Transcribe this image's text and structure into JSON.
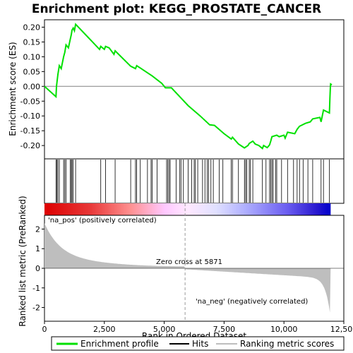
{
  "chart_data": {
    "type": "line",
    "title": "Enrichment plot: KEGG_PROSTATE_CANCER",
    "xlabel": "Rank in Ordered Dataset",
    "ylabel_top": "Enrichment score (ES)",
    "ylabel_bottom": "Ranked list metric (PreRanked)",
    "xlim": [
      0,
      12500
    ],
    "ylim_top": [
      -0.245,
      0.225
    ],
    "ylim_bottom": [
      -2.7,
      2.7
    ],
    "x_ticks": [
      0,
      2500,
      5000,
      7500,
      10000,
      12500
    ],
    "x_tick_labels": [
      "0",
      "2,500",
      "5,000",
      "7,500",
      "10,000",
      "12,500"
    ],
    "y_ticks_top": [
      0.2,
      0.15,
      0.1,
      0.05,
      0.0,
      -0.05,
      -0.1,
      -0.15,
      -0.2
    ],
    "y_tick_labels_top": [
      "0.20",
      "0.15",
      "0.10",
      "0.05",
      "0.00",
      "-0.05",
      "-0.10",
      "-0.15",
      "-0.20"
    ],
    "y_ticks_bottom": [
      2,
      1,
      0,
      -1,
      -2
    ],
    "y_tick_labels_bottom": [
      "2",
      "1",
      "0",
      "-1",
      "-2"
    ],
    "label_pos": "'na_pos' (positively correlated)",
    "label_neg": "'na_neg' (negatively correlated)",
    "zero_cross_label": "Zero cross at 5871",
    "zero_cross": 5871,
    "n_genes": 11950,
    "enrichment_profile": [
      [
        0,
        0.0
      ],
      [
        480,
        -0.035
      ],
      [
        500,
        0.0
      ],
      [
        560,
        0.04
      ],
      [
        620,
        0.07
      ],
      [
        700,
        0.06
      ],
      [
        800,
        0.1
      ],
      [
        850,
        0.115
      ],
      [
        900,
        0.14
      ],
      [
        1000,
        0.13
      ],
      [
        1080,
        0.16
      ],
      [
        1120,
        0.175
      ],
      [
        1150,
        0.19
      ],
      [
        1200,
        0.197
      ],
      [
        1250,
        0.188
      ],
      [
        1300,
        0.21
      ],
      [
        2300,
        0.125
      ],
      [
        2350,
        0.135
      ],
      [
        2500,
        0.125
      ],
      [
        2550,
        0.135
      ],
      [
        2700,
        0.13
      ],
      [
        2900,
        0.108
      ],
      [
        2950,
        0.12
      ],
      [
        3600,
        0.068
      ],
      [
        3800,
        0.06
      ],
      [
        3850,
        0.07
      ],
      [
        4000,
        0.062
      ],
      [
        4500,
        0.035
      ],
      [
        4900,
        0.01
      ],
      [
        5050,
        -0.005
      ],
      [
        5300,
        -0.005
      ],
      [
        6000,
        -0.065
      ],
      [
        6500,
        -0.1
      ],
      [
        6900,
        -0.13
      ],
      [
        7100,
        -0.132
      ],
      [
        7500,
        -0.16
      ],
      [
        7800,
        -0.178
      ],
      [
        7850,
        -0.172
      ],
      [
        8100,
        -0.195
      ],
      [
        8350,
        -0.208
      ],
      [
        8500,
        -0.2
      ],
      [
        8550,
        -0.193
      ],
      [
        8700,
        -0.185
      ],
      [
        8800,
        -0.195
      ],
      [
        8950,
        -0.2
      ],
      [
        9100,
        -0.21
      ],
      [
        9150,
        -0.2
      ],
      [
        9300,
        -0.207
      ],
      [
        9400,
        -0.198
      ],
      [
        9450,
        -0.185
      ],
      [
        9500,
        -0.17
      ],
      [
        9700,
        -0.165
      ],
      [
        9800,
        -0.17
      ],
      [
        10000,
        -0.165
      ],
      [
        10050,
        -0.175
      ],
      [
        10150,
        -0.155
      ],
      [
        10450,
        -0.16
      ],
      [
        10550,
        -0.145
      ],
      [
        10650,
        -0.135
      ],
      [
        10900,
        -0.125
      ],
      [
        11100,
        -0.12
      ],
      [
        11200,
        -0.11
      ],
      [
        11500,
        -0.105
      ],
      [
        11550,
        -0.12
      ],
      [
        11650,
        -0.08
      ],
      [
        11900,
        -0.09
      ],
      [
        11920,
        -0.04
      ],
      [
        11940,
        0.0
      ],
      [
        11950,
        0.008
      ],
      [
        12000,
        0.005
      ]
    ],
    "hits": [
      480,
      520,
      560,
      620,
      800,
      850,
      900,
      1080,
      1120,
      1150,
      1200,
      1300,
      2350,
      2550,
      2950,
      3600,
      3800,
      3850,
      4000,
      4300,
      4450,
      4500,
      4700,
      5100,
      5150,
      5200,
      5250,
      5500,
      5650,
      5700,
      5800,
      6000,
      6150,
      6250,
      6300,
      6400,
      6600,
      6700,
      6800,
      6850,
      6950,
      7050,
      7300,
      7450,
      7800,
      7850,
      8100,
      8350,
      8400,
      8450,
      8550,
      8600,
      8700,
      9100,
      9250,
      9400,
      9450,
      9500,
      9550,
      9650,
      9700,
      9900,
      10150,
      10400,
      10550,
      10650,
      10800,
      11000,
      11200,
      11550,
      11650,
      11900
    ],
    "colors": {
      "profile": "#00e000",
      "hits": "#000000",
      "zero_line": "#808080",
      "metric_fill": "#bebebe",
      "pos_label": "#cc0000",
      "neg_label": "#0000cc",
      "bar_pos": "#dd0000",
      "bar_neg": "#0000cc"
    }
  },
  "legend": {
    "items": [
      {
        "label": "Enrichment profile",
        "symbol": "green-line"
      },
      {
        "label": "Hits",
        "symbol": "black-line"
      },
      {
        "label": "Ranking metric scores",
        "symbol": "gray-line"
      }
    ]
  }
}
